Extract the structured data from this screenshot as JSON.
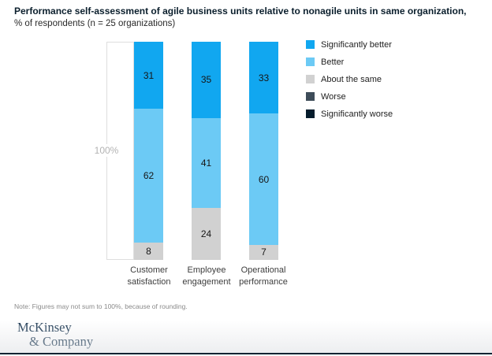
{
  "title": "Performance self-assessment of agile business units relative to nonagile units in same organization,",
  "subtitle": "% of respondents (n = 25 organizations)",
  "axis_label": "100%",
  "note": "Note: Figures may not sum to 100%, because of rounding.",
  "footer": {
    "brand_line1": "McKinsey",
    "brand_line2": "& Company"
  },
  "colors": {
    "significantly_better": "#11a7f0",
    "better": "#6ccaf5",
    "about_the_same": "#d1d1d1",
    "worse": "#3e4c59",
    "significantly_worse": "#051c2c"
  },
  "chart_data": {
    "type": "bar",
    "stacked": true,
    "normalized_to": "100%",
    "unit": "% of respondents",
    "categories": [
      "Customer satisfaction",
      "Employee engagement",
      "Operational performance"
    ],
    "series": [
      {
        "name": "Significantly better",
        "color_key": "significantly_better",
        "values": [
          31,
          35,
          33
        ]
      },
      {
        "name": "Better",
        "color_key": "better",
        "values": [
          62,
          41,
          60
        ]
      },
      {
        "name": "About the same",
        "color_key": "about_the_same",
        "values": [
          8,
          24,
          7
        ]
      },
      {
        "name": "Worse",
        "color_key": "worse",
        "values": [
          0,
          0,
          0
        ]
      },
      {
        "name": "Significantly worse",
        "color_key": "significantly_worse",
        "values": [
          0,
          0,
          0
        ]
      }
    ],
    "legend_position": "right",
    "y_reference": "100%",
    "grid": false
  }
}
